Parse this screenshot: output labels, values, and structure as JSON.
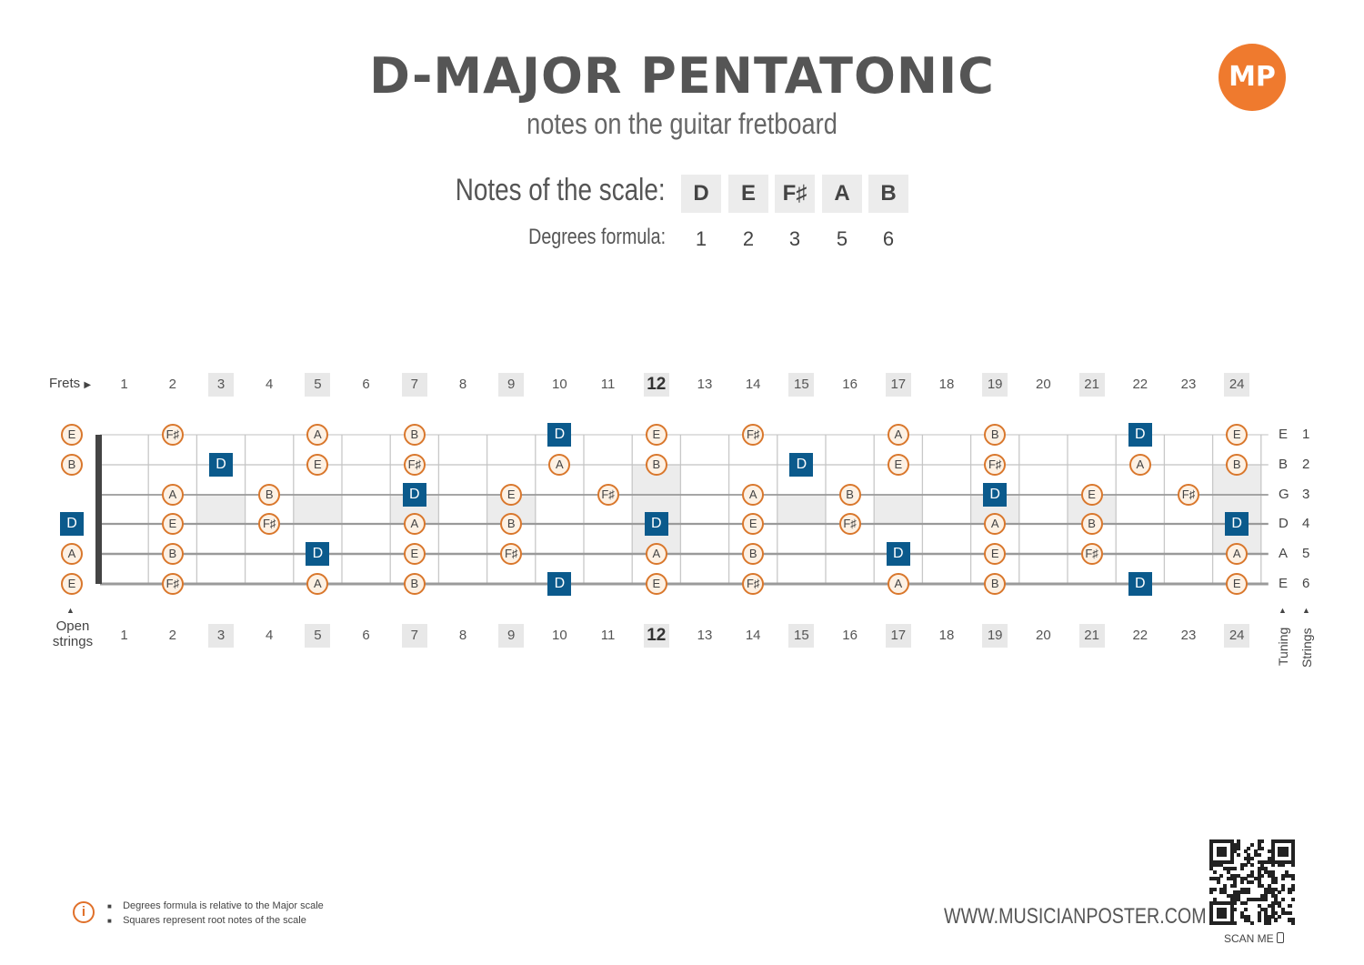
{
  "header": {
    "title": "D-MAJOR PENTATONIC",
    "subtitle": "notes on the guitar fretboard",
    "logo_text": "MP"
  },
  "scale": {
    "notes_label": "Notes of the scale:",
    "degrees_label": "Degrees formula:",
    "notes": [
      "D",
      "E",
      "F♯",
      "A",
      "B"
    ],
    "degrees": [
      "1",
      "2",
      "3",
      "5",
      "6"
    ]
  },
  "fretboard": {
    "frets_label": "Frets",
    "open_strings_label_1": "Open",
    "open_strings_label_2": "strings",
    "tuning_label": "Tuning",
    "strings_label": "Strings",
    "fret_numbers": [
      "1",
      "2",
      "3",
      "4",
      "5",
      "6",
      "7",
      "8",
      "9",
      "10",
      "11",
      "12",
      "13",
      "14",
      "15",
      "16",
      "17",
      "18",
      "19",
      "20",
      "21",
      "22",
      "23",
      "24"
    ],
    "marked_frets": [
      3,
      5,
      7,
      9,
      12,
      15,
      17,
      19,
      21,
      24
    ],
    "tuning": [
      "E",
      "B",
      "G",
      "D",
      "A",
      "E"
    ],
    "string_numbers": [
      "1",
      "2",
      "3",
      "4",
      "5",
      "6"
    ],
    "root": "D",
    "strings": [
      [
        "E",
        "",
        "F♯",
        "",
        "",
        "A",
        "",
        "B",
        "",
        "",
        "D",
        "",
        "E",
        "",
        "F♯",
        "",
        "",
        "A",
        "",
        "B",
        "",
        "",
        "D",
        "",
        "E"
      ],
      [
        "B",
        "",
        "",
        "D",
        "",
        "E",
        "",
        "F♯",
        "",
        "",
        "A",
        "",
        "B",
        "",
        "",
        "D",
        "",
        "E",
        "",
        "F♯",
        "",
        "",
        "A",
        "",
        "B"
      ],
      [
        "",
        "",
        "A",
        "",
        "B",
        "",
        "",
        "D",
        "",
        "E",
        "",
        "F♯",
        "",
        "",
        "A",
        "",
        "B",
        "",
        "",
        "D",
        "",
        "E",
        "",
        "F♯",
        ""
      ],
      [
        "D",
        "",
        "E",
        "",
        "F♯",
        "",
        "",
        "A",
        "",
        "B",
        "",
        "",
        "D",
        "",
        "E",
        "",
        "F♯",
        "",
        "",
        "A",
        "",
        "B",
        "",
        "",
        "D"
      ],
      [
        "A",
        "",
        "B",
        "",
        "",
        "D",
        "",
        "E",
        "",
        "F♯",
        "",
        "",
        "A",
        "",
        "B",
        "",
        "",
        "D",
        "",
        "E",
        "",
        "F♯",
        "",
        "",
        "A"
      ],
      [
        "E",
        "",
        "F♯",
        "",
        "",
        "A",
        "",
        "B",
        "",
        "",
        "D",
        "",
        "E",
        "",
        "F♯",
        "",
        "",
        "A",
        "",
        "B",
        "",
        "",
        "D",
        "",
        "E"
      ]
    ]
  },
  "footer": {
    "info_icon": "info-icon",
    "notes": [
      "Degrees formula is relative to the Major scale",
      "Squares represent root notes of the scale"
    ],
    "website": "WWW.MUSICIANPOSTER.COM",
    "scan_label": "SCAN ME"
  }
}
